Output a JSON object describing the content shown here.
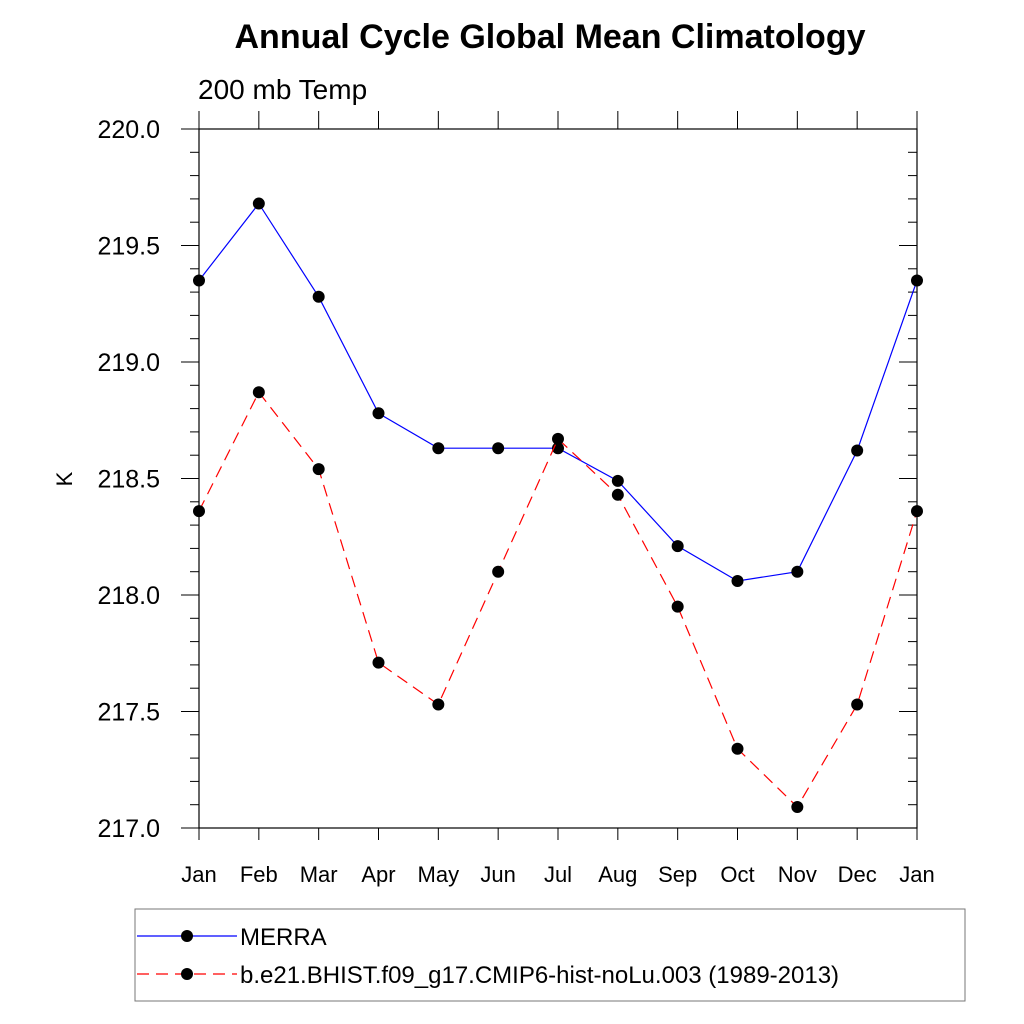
{
  "chart_data": {
    "type": "line",
    "title": "Annual Cycle Global Mean Climatology",
    "subtitle": "200 mb Temp",
    "xlabel": "",
    "ylabel": "K",
    "categories": [
      "Jan",
      "Feb",
      "Mar",
      "Apr",
      "May",
      "Jun",
      "Jul",
      "Aug",
      "Sep",
      "Oct",
      "Nov",
      "Dec",
      "Jan"
    ],
    "ylim": [
      217.0,
      220.0
    ],
    "yticks": [
      "217.0",
      "217.5",
      "218.0",
      "218.5",
      "219.0",
      "219.5",
      "220.0"
    ],
    "series": [
      {
        "name": "MERRA",
        "color": "#0000ff",
        "dash": "solid",
        "values": [
          219.35,
          219.68,
          219.28,
          218.78,
          218.63,
          218.63,
          218.63,
          218.49,
          218.21,
          218.06,
          218.1,
          218.62,
          219.35
        ]
      },
      {
        "name": "b.e21.BHIST.f09_g17.CMIP6-hist-noLu.003 (1989-2013)",
        "color": "#ff0000",
        "dash": "dashed",
        "values": [
          218.36,
          218.87,
          218.54,
          217.71,
          217.53,
          218.1,
          218.67,
          218.43,
          217.95,
          217.34,
          217.09,
          217.53,
          218.36
        ]
      }
    ],
    "grid": false,
    "legend_position": "bottom"
  }
}
